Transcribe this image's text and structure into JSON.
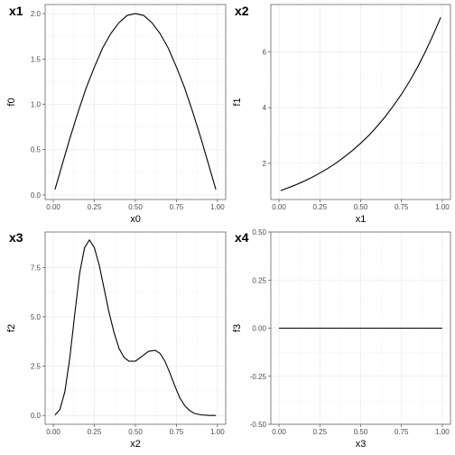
{
  "chart_data": [
    {
      "type": "line",
      "tag": "x1",
      "xlabel": "x0",
      "ylabel": "f0",
      "xlim": [
        -0.05,
        1.05
      ],
      "ylim": [
        -0.05,
        2.1
      ],
      "xticks": [
        {
          "v": 0.0,
          "label": "0.00"
        },
        {
          "v": 0.25,
          "label": "0.25"
        },
        {
          "v": 0.5,
          "label": "0.50"
        },
        {
          "v": 0.75,
          "label": "0.75"
        },
        {
          "v": 1.0,
          "label": "1.00"
        }
      ],
      "yticks": [
        {
          "v": 0.0,
          "label": "0.0"
        },
        {
          "v": 0.5,
          "label": "0.5"
        },
        {
          "v": 1.0,
          "label": "1.0"
        },
        {
          "v": 1.5,
          "label": "1.5"
        },
        {
          "v": 2.0,
          "label": "2.0"
        }
      ],
      "x": [
        0.01,
        0.05,
        0.1,
        0.15,
        0.2,
        0.25,
        0.3,
        0.35,
        0.4,
        0.45,
        0.5,
        0.55,
        0.6,
        0.65,
        0.7,
        0.75,
        0.8,
        0.85,
        0.9,
        0.95,
        0.99
      ],
      "y": [
        0.06,
        0.31,
        0.62,
        0.91,
        1.18,
        1.41,
        1.62,
        1.78,
        1.9,
        1.98,
        2.0,
        1.98,
        1.9,
        1.78,
        1.62,
        1.41,
        1.18,
        0.91,
        0.62,
        0.31,
        0.06
      ]
    },
    {
      "type": "line",
      "tag": "x2",
      "xlabel": "x1",
      "ylabel": "f1",
      "xlim": [
        -0.05,
        1.05
      ],
      "ylim": [
        0.7,
        7.7
      ],
      "xticks": [
        {
          "v": 0.0,
          "label": "0.00"
        },
        {
          "v": 0.25,
          "label": "0.25"
        },
        {
          "v": 0.5,
          "label": "0.50"
        },
        {
          "v": 0.75,
          "label": "0.75"
        },
        {
          "v": 1.0,
          "label": "1.00"
        }
      ],
      "yticks": [
        {
          "v": 2,
          "label": "2"
        },
        {
          "v": 4,
          "label": "4"
        },
        {
          "v": 6,
          "label": "6"
        }
      ],
      "x": [
        0.01,
        0.05,
        0.1,
        0.15,
        0.2,
        0.25,
        0.3,
        0.35,
        0.4,
        0.45,
        0.5,
        0.55,
        0.6,
        0.65,
        0.7,
        0.75,
        0.8,
        0.85,
        0.9,
        0.95,
        0.99
      ],
      "y": [
        1.02,
        1.11,
        1.22,
        1.35,
        1.49,
        1.65,
        1.82,
        2.01,
        2.23,
        2.46,
        2.72,
        3.0,
        3.32,
        3.67,
        4.06,
        4.48,
        4.95,
        5.47,
        6.05,
        6.69,
        7.24
      ]
    },
    {
      "type": "line",
      "tag": "x3",
      "xlabel": "x2",
      "ylabel": "f2",
      "xlim": [
        -0.05,
        1.05
      ],
      "ylim": [
        -0.45,
        9.3
      ],
      "xticks": [
        {
          "v": 0.0,
          "label": "0.00"
        },
        {
          "v": 0.25,
          "label": "0.25"
        },
        {
          "v": 0.5,
          "label": "0.50"
        },
        {
          "v": 0.75,
          "label": "0.75"
        },
        {
          "v": 1.0,
          "label": "1.00"
        }
      ],
      "yticks": [
        {
          "v": 0.0,
          "label": "0.0"
        },
        {
          "v": 2.5,
          "label": "2.5"
        },
        {
          "v": 5.0,
          "label": "5.0"
        },
        {
          "v": 7.5,
          "label": "7.5"
        }
      ],
      "x": [
        0.01,
        0.04,
        0.07,
        0.1,
        0.13,
        0.16,
        0.19,
        0.22,
        0.25,
        0.28,
        0.31,
        0.34,
        0.37,
        0.4,
        0.43,
        0.46,
        0.5,
        0.54,
        0.58,
        0.62,
        0.65,
        0.68,
        0.71,
        0.74,
        0.77,
        0.8,
        0.83,
        0.86,
        0.9,
        0.95,
        0.99
      ],
      "y": [
        0.02,
        0.3,
        1.2,
        2.9,
        5.1,
        7.2,
        8.5,
        8.9,
        8.5,
        7.6,
        6.4,
        5.2,
        4.2,
        3.4,
        2.95,
        2.75,
        2.75,
        3.0,
        3.25,
        3.3,
        3.15,
        2.75,
        2.15,
        1.5,
        0.9,
        0.5,
        0.25,
        0.1,
        0.03,
        0.0,
        0.0
      ]
    },
    {
      "type": "line",
      "tag": "x4",
      "xlabel": "x3",
      "ylabel": "f3",
      "xlim": [
        -0.05,
        1.05
      ],
      "ylim": [
        -0.5,
        0.5
      ],
      "xticks": [
        {
          "v": 0.0,
          "label": "0.00"
        },
        {
          "v": 0.25,
          "label": "0.25"
        },
        {
          "v": 0.5,
          "label": "0.50"
        },
        {
          "v": 0.75,
          "label": "0.75"
        },
        {
          "v": 1.0,
          "label": "1.00"
        }
      ],
      "yticks": [
        {
          "v": -0.5,
          "label": "-0.50"
        },
        {
          "v": -0.25,
          "label": "-0.25"
        },
        {
          "v": 0.0,
          "label": "0.00"
        },
        {
          "v": 0.25,
          "label": "0.25"
        },
        {
          "v": 0.5,
          "label": "0.50"
        }
      ],
      "x": [
        0.0,
        1.0
      ],
      "y": [
        0.0,
        0.0
      ]
    }
  ]
}
